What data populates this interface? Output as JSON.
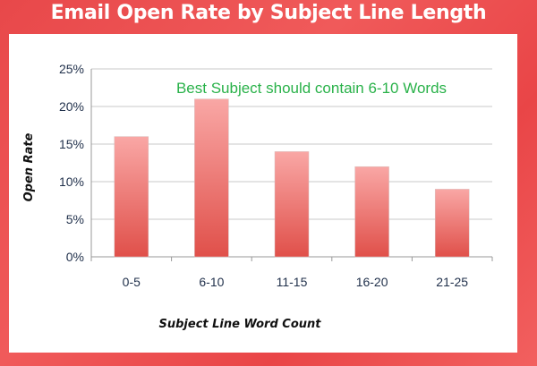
{
  "chart_data": {
    "type": "bar",
    "title": "Email Open Rate by Subject Line Length",
    "xlabel": "Subject Line Word Count",
    "ylabel": "Open Rate",
    "categories": [
      "0-5",
      "6-10",
      "11-15",
      "16-20",
      "21-25"
    ],
    "values": [
      16,
      21,
      14,
      12,
      9
    ],
    "ylim": [
      0,
      25
    ],
    "yticks": [
      "0%",
      "5%",
      "10%",
      "15%",
      "20%",
      "25%"
    ],
    "annotation": "Best Subject should contain 6-10 Words",
    "grid": true,
    "bar_color_top": "#f9a7a5",
    "bar_color_bottom": "#e0504a",
    "annotation_color": "#2ab24a",
    "background_color": "#ec4c4d"
  }
}
